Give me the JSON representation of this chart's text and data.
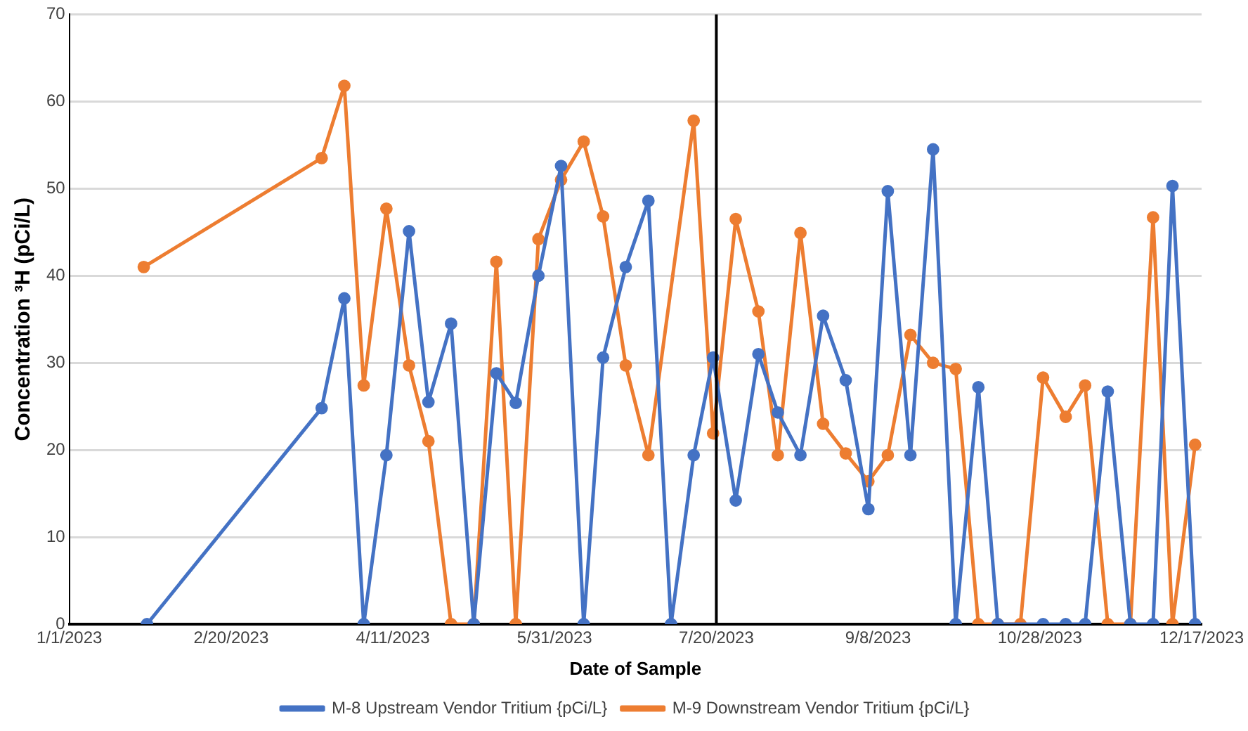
{
  "chart_data": {
    "type": "line",
    "xlabel": "Date of Sample",
    "ylabel": "Concentration ³H (pCi/L)",
    "xlim": [
      "2023-01-01",
      "2023-12-17"
    ],
    "xticks": [
      {
        "value": "2023-01-01",
        "label": "1/1/2023"
      },
      {
        "value": "2023-02-20",
        "label": "2/20/2023"
      },
      {
        "value": "2023-04-11",
        "label": "4/11/2023"
      },
      {
        "value": "2023-05-31",
        "label": "5/31/2023"
      },
      {
        "value": "2023-07-20",
        "label": "7/20/2023"
      },
      {
        "value": "2023-09-08",
        "label": "9/8/2023"
      },
      {
        "value": "2023-10-28",
        "label": "10/28/2023"
      },
      {
        "value": "2023-12-17",
        "label": "12/17/2023"
      }
    ],
    "ylim": [
      0,
      70
    ],
    "yticks": [
      0,
      10,
      20,
      30,
      40,
      50,
      60,
      70
    ],
    "grid": "y",
    "legend": "bottom",
    "marker": "circle",
    "line_style": "solid",
    "ref_lines": [
      {
        "axis": "x",
        "value": "2023-07-20",
        "color": "#000000"
      }
    ],
    "series": [
      {
        "name": "M-8 Upstream Vendor Tritium {pCi/L}",
        "color": "#4472c4",
        "x": [
          "2023-01-25",
          "2023-03-20",
          "2023-03-27",
          "2023-04-02",
          "2023-04-09",
          "2023-04-16",
          "2023-04-22",
          "2023-04-29",
          "2023-05-06",
          "2023-05-13",
          "2023-05-19",
          "2023-05-26",
          "2023-06-02",
          "2023-06-09",
          "2023-06-15",
          "2023-06-22",
          "2023-06-29",
          "2023-07-06",
          "2023-07-13",
          "2023-07-19",
          "2023-07-26",
          "2023-08-02",
          "2023-08-08",
          "2023-08-15",
          "2023-08-22",
          "2023-08-29",
          "2023-09-05",
          "2023-09-11",
          "2023-09-18",
          "2023-09-25",
          "2023-10-02",
          "2023-10-09",
          "2023-10-15",
          "2023-10-29",
          "2023-11-05",
          "2023-11-11",
          "2023-11-18",
          "2023-11-25",
          "2023-12-02",
          "2023-12-08",
          "2023-12-15"
        ],
        "values": [
          0,
          24.8,
          37.4,
          0,
          19.4,
          45.1,
          25.5,
          34.5,
          0,
          28.8,
          25.4,
          40,
          52.6,
          0,
          30.6,
          41,
          48.6,
          0,
          19.4,
          30.6,
          14.2,
          31,
          24.3,
          19.4,
          35.4,
          28,
          13.2,
          49.7,
          19.4,
          54.5,
          0,
          27.2,
          0,
          0,
          0,
          0,
          26.7,
          0,
          0,
          50.3,
          0
        ]
      },
      {
        "name": "M-9 Downstream Vendor Tritium {pCi/L}",
        "color": "#ed7d31",
        "x": [
          "2023-01-24",
          "2023-03-20",
          "2023-03-27",
          "2023-04-02",
          "2023-04-09",
          "2023-04-16",
          "2023-04-22",
          "2023-04-29",
          "2023-05-06",
          "2023-05-13",
          "2023-05-19",
          "2023-05-26",
          "2023-06-02",
          "2023-06-09",
          "2023-06-15",
          "2023-06-22",
          "2023-06-29",
          "2023-07-13",
          "2023-07-19",
          "2023-07-26",
          "2023-08-02",
          "2023-08-08",
          "2023-08-15",
          "2023-08-22",
          "2023-08-29",
          "2023-09-05",
          "2023-09-11",
          "2023-09-18",
          "2023-09-25",
          "2023-10-02",
          "2023-10-09",
          "2023-10-15",
          "2023-10-22",
          "2023-10-29",
          "2023-11-05",
          "2023-11-11",
          "2023-11-18",
          "2023-11-25",
          "2023-12-02",
          "2023-12-08",
          "2023-12-15"
        ],
        "values": [
          41,
          53.5,
          61.8,
          27.4,
          47.7,
          29.7,
          21,
          0,
          0,
          41.6,
          0,
          44.2,
          51,
          55.4,
          46.8,
          29.7,
          19.4,
          57.8,
          21.9,
          46.5,
          35.9,
          19.4,
          44.9,
          23,
          19.6,
          16.4,
          19.4,
          33.2,
          30,
          29.3,
          0,
          0,
          0,
          28.3,
          23.8,
          27.4,
          0,
          0,
          46.7,
          0,
          20.6
        ]
      }
    ]
  }
}
